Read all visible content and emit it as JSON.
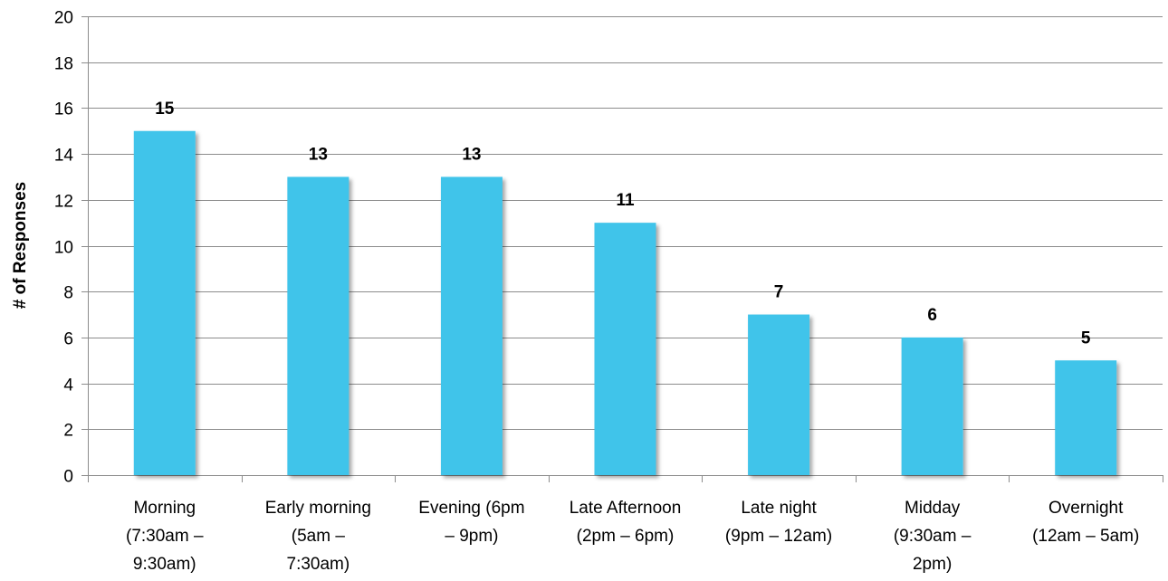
{
  "chart_data": {
    "type": "bar",
    "title": "",
    "xlabel": "",
    "ylabel": "# of Responses",
    "ylim": [
      0,
      20
    ],
    "yticks": [
      0,
      2,
      4,
      6,
      8,
      10,
      12,
      14,
      16,
      18,
      20
    ],
    "grid": true,
    "legend": "none",
    "bar_color": "#3FC4EA",
    "categories": [
      [
        "Morning",
        "(7:30am –",
        "9:30am)"
      ],
      [
        "Early morning",
        "(5am –",
        "7:30am)"
      ],
      [
        "Evening (6pm",
        "– 9pm)"
      ],
      [
        "Late Afternoon",
        "(2pm – 6pm)"
      ],
      [
        "Late night",
        "(9pm – 12am)"
      ],
      [
        "Midday",
        "(9:30am –",
        "2pm)"
      ],
      [
        "Overnight",
        "(12am – 5am)"
      ]
    ],
    "values": [
      15,
      13,
      13,
      11,
      7,
      6,
      5
    ]
  }
}
